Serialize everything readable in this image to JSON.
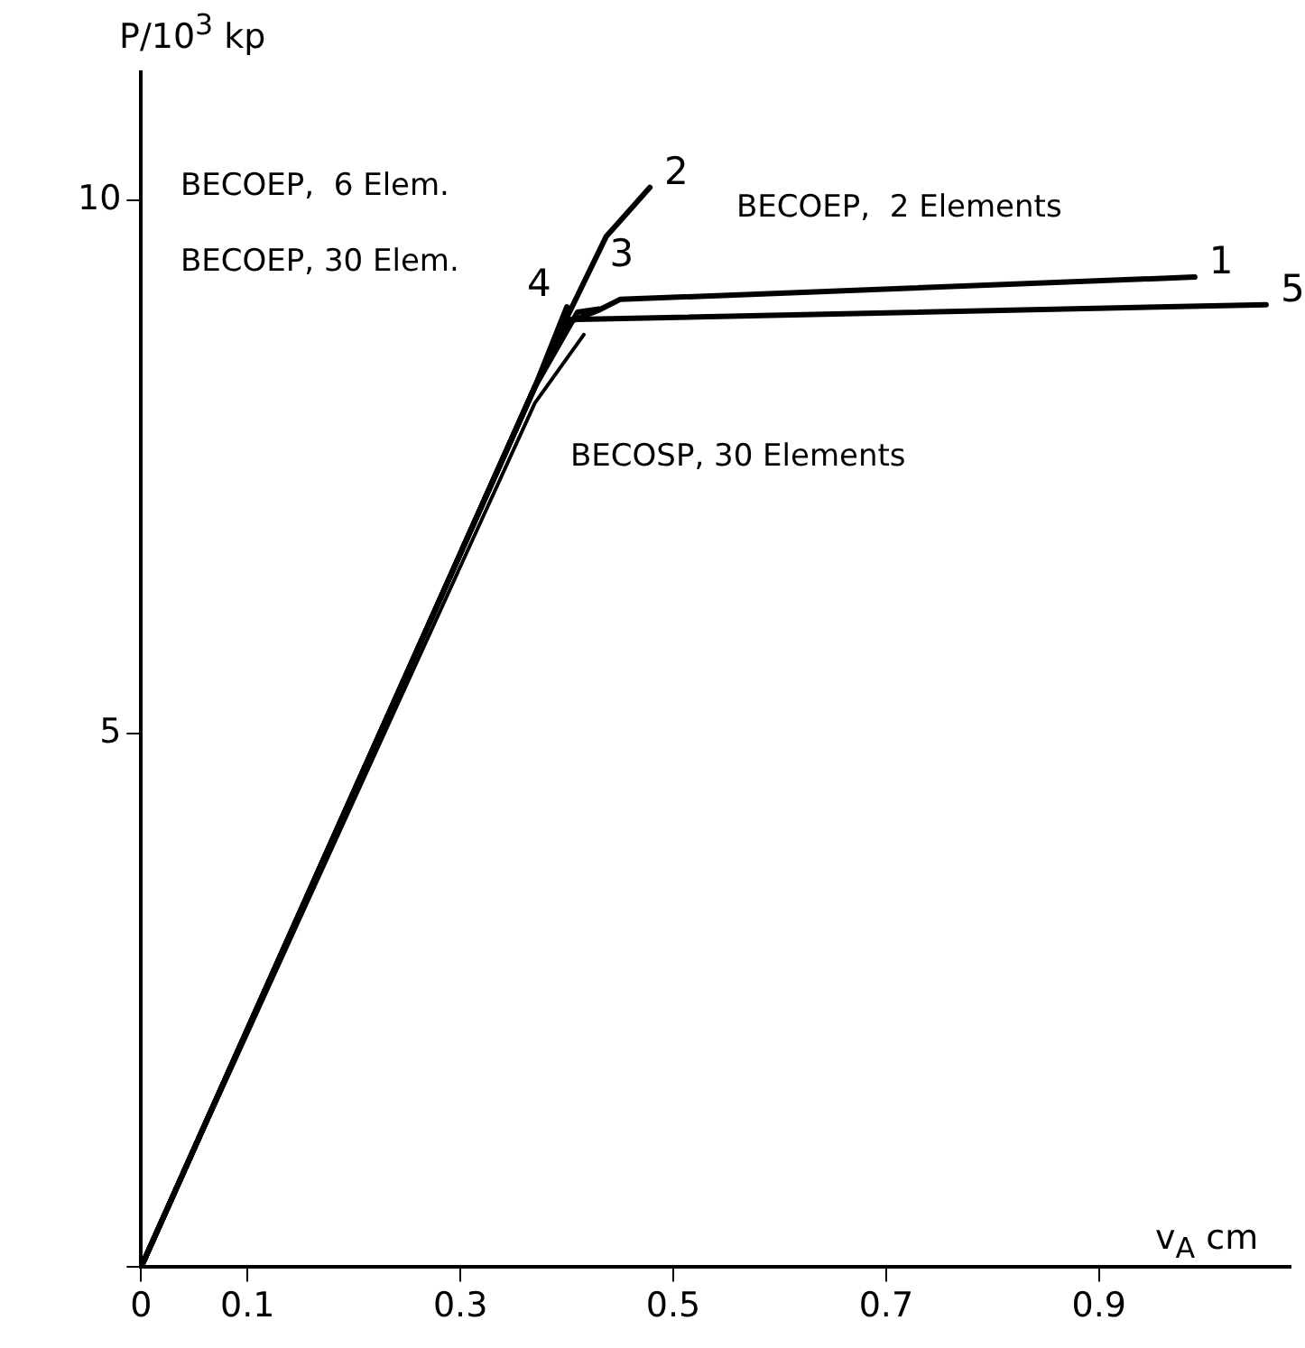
{
  "chart_data": {
    "type": "line",
    "xlabel": "v$_{A}$ cm",
    "ylabel": "P/10$^{3}$ kp",
    "xlim": [
      0,
      1.08
    ],
    "ylim": [
      0,
      11.2
    ],
    "xticks": [
      0,
      0.1,
      0.3,
      0.5,
      0.7,
      0.9
    ],
    "yticks": [
      {
        "value": 0,
        "label": null
      },
      5,
      10
    ],
    "grid": false,
    "legend": false,
    "marker": "none",
    "line_style": "solid",
    "series": [
      {
        "name": "1",
        "color": "#000000",
        "x": [
          0,
          0.37,
          0.4,
          0.43,
          0.45,
          0.99
        ],
        "values": [
          0,
          8.25,
          8.85,
          8.97,
          9.07,
          9.28
        ]
      },
      {
        "name": "2",
        "color": "#000000",
        "x": [
          0,
          0.37,
          0.4,
          0.437,
          0.478
        ],
        "values": [
          0,
          8.25,
          8.9,
          9.66,
          10.12
        ]
      },
      {
        "name": "3",
        "color": "#000000",
        "x": [
          0,
          0.37,
          0.41,
          0.43
        ],
        "values": [
          0,
          8.25,
          8.95,
          8.98
        ]
      },
      {
        "name": "4",
        "color": "#000000",
        "x": [
          0,
          0.37,
          0.4
        ],
        "values": [
          0,
          8.25,
          9.0
        ]
      },
      {
        "name": "5",
        "color": "#000000",
        "x": [
          0,
          0.37,
          0.4,
          1.057
        ],
        "values": [
          0,
          8.25,
          8.88,
          9.02
        ]
      },
      {
        "color": "#000000",
        "x": [
          0,
          0.37,
          0.416
        ],
        "values": [
          0,
          8.1,
          8.74
        ]
      }
    ],
    "annotations": [
      "BECOEP,  6 Elem.",
      "BECOEP, 30 Elem.",
      "BECOEP,  2 Elements",
      "BECOSP, 30 Elements"
    ]
  }
}
